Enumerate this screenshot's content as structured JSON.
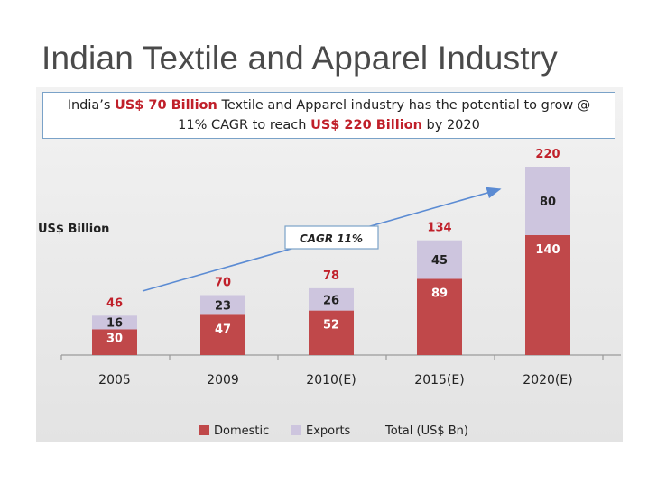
{
  "slide_title": "Indian Textile and Apparel Industry",
  "headline": {
    "line1_pre": "India’s ",
    "line1_hl": "US$ 70 Billion",
    "line1_post": " Textile and Apparel industry has the potential to grow @",
    "line2_pre": "11% CAGR to reach ",
    "line2_hl": "US$ 220 Billion",
    "line2_post": " by 2020"
  },
  "chart_data": {
    "type": "bar",
    "stacked": true,
    "ylabel": "US$ Billion",
    "categories": [
      "2005",
      "2009",
      "2010(E)",
      "2015(E)",
      "2020(E)"
    ],
    "series": [
      {
        "name": "Domestic",
        "color": "#c0484a",
        "values": [
          30,
          47,
          52,
          89,
          140
        ]
      },
      {
        "name": "Exports",
        "color": "#cdc5de",
        "values": [
          16,
          23,
          26,
          45,
          80
        ]
      }
    ],
    "totals": [
      46,
      70,
      78,
      134,
      220
    ],
    "total_label_color": "#c0202a",
    "ylim": [
      0,
      220
    ],
    "annotation": "CAGR 11%",
    "legend_extra": "Total (US$ Bn)",
    "legend_position": "bottom",
    "grid": false
  }
}
